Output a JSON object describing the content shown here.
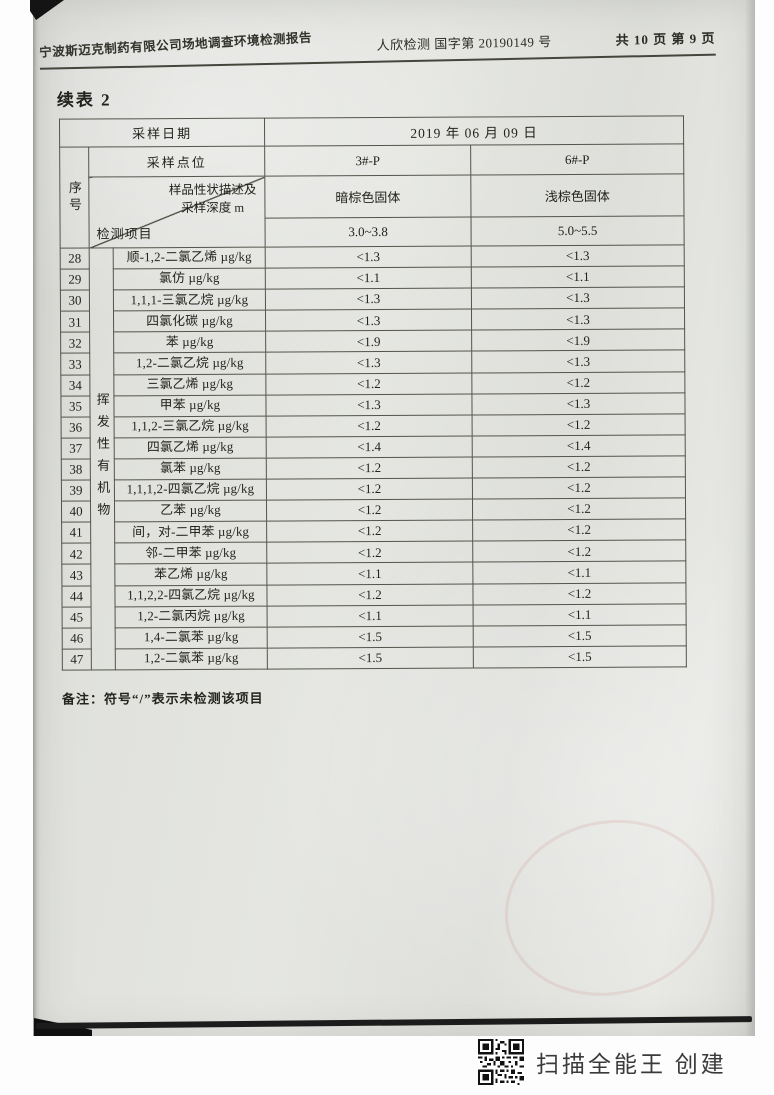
{
  "page_header": {
    "report_title": "宁波斯迈克制药有限公司场地调查环境检测报告",
    "report_number": "人欣检测 国字第 20190149 号",
    "pagination": "共 10 页 第 9 页"
  },
  "section_title": "续表 2",
  "table": {
    "sampling_date_label": "采样日期",
    "sampling_date": "2019 年 06 月 09 日",
    "sampling_point_label": "采样点位",
    "serial_number_label": "序号",
    "diagonal_top_line1": "样品性状描述及",
    "diagonal_top_line2": "采样深度 m",
    "diagonal_bottom_label": "检测项目",
    "points": [
      "3#-P",
      "6#-P"
    ],
    "sample_descriptions": [
      "暗棕色固体",
      "浅棕色固体"
    ],
    "sample_depths": [
      "3.0~3.8",
      "5.0~5.5"
    ],
    "group_label": "挥发性有机物",
    "rows": [
      {
        "no": "28",
        "item": "顺-1,2-二氯乙烯 µg/kg",
        "v1": "<1.3",
        "v2": "<1.3"
      },
      {
        "no": "29",
        "item": "氯仿 µg/kg",
        "v1": "<1.1",
        "v2": "<1.1"
      },
      {
        "no": "30",
        "item": "1,1,1-三氯乙烷 µg/kg",
        "v1": "<1.3",
        "v2": "<1.3"
      },
      {
        "no": "31",
        "item": "四氯化碳 µg/kg",
        "v1": "<1.3",
        "v2": "<1.3"
      },
      {
        "no": "32",
        "item": "苯 µg/kg",
        "v1": "<1.9",
        "v2": "<1.9"
      },
      {
        "no": "33",
        "item": "1,2-二氯乙烷 µg/kg",
        "v1": "<1.3",
        "v2": "<1.3"
      },
      {
        "no": "34",
        "item": "三氯乙烯 µg/kg",
        "v1": "<1.2",
        "v2": "<1.2"
      },
      {
        "no": "35",
        "item": "甲苯 µg/kg",
        "v1": "<1.3",
        "v2": "<1.3"
      },
      {
        "no": "36",
        "item": "1,1,2-三氯乙烷 µg/kg",
        "v1": "<1.2",
        "v2": "<1.2"
      },
      {
        "no": "37",
        "item": "四氯乙烯 µg/kg",
        "v1": "<1.4",
        "v2": "<1.4"
      },
      {
        "no": "38",
        "item": "氯苯 µg/kg",
        "v1": "<1.2",
        "v2": "<1.2"
      },
      {
        "no": "39",
        "item": "1,1,1,2-四氯乙烷 µg/kg",
        "v1": "<1.2",
        "v2": "<1.2"
      },
      {
        "no": "40",
        "item": "乙苯 µg/kg",
        "v1": "<1.2",
        "v2": "<1.2"
      },
      {
        "no": "41",
        "item": "间，对-二甲苯 µg/kg",
        "v1": "<1.2",
        "v2": "<1.2"
      },
      {
        "no": "42",
        "item": "邻-二甲苯 µg/kg",
        "v1": "<1.2",
        "v2": "<1.2"
      },
      {
        "no": "43",
        "item": "苯乙烯 µg/kg",
        "v1": "<1.1",
        "v2": "<1.1"
      },
      {
        "no": "44",
        "item": "1,1,2,2-四氯乙烷 µg/kg",
        "v1": "<1.2",
        "v2": "<1.2"
      },
      {
        "no": "45",
        "item": "1,2-二氯丙烷 µg/kg",
        "v1": "<1.1",
        "v2": "<1.1"
      },
      {
        "no": "46",
        "item": "1,4-二氯苯 µg/kg",
        "v1": "<1.5",
        "v2": "<1.5"
      },
      {
        "no": "47",
        "item": "1,2-二氯苯 µg/kg",
        "v1": "<1.5",
        "v2": "<1.5"
      }
    ]
  },
  "note": "备注：符号“/”表示未检测该项目",
  "footer": {
    "caption": "扫描全能王 创建"
  }
}
